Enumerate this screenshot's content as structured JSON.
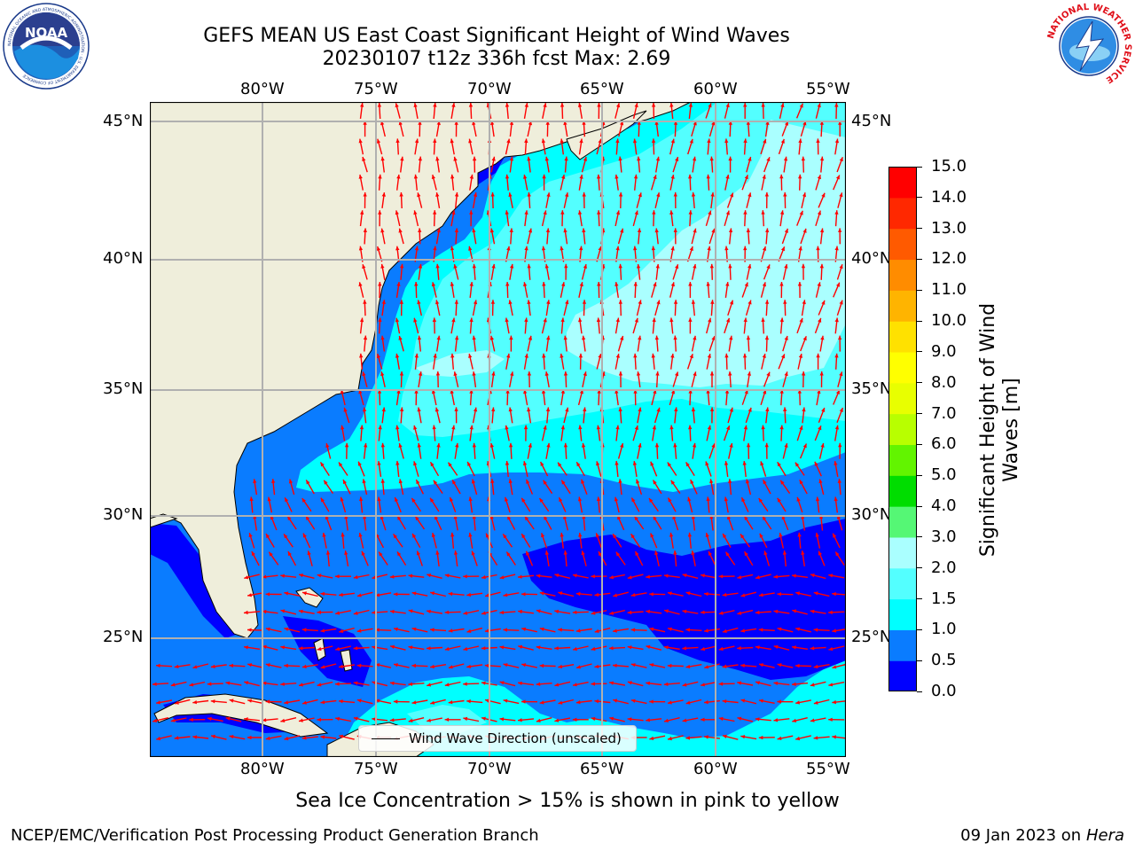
{
  "title": {
    "line1": "GEFS MEAN US East Coast Significant Height of Wind Waves",
    "line2": "20230107 t12z 336h fcst   Max: 2.69"
  },
  "logos": {
    "left": {
      "name": "noaa-logo",
      "text": "NOAA",
      "ring_text": "NATIONAL OCEANIC AND ATMOSPHERIC ADMINISTRATION · U.S. DEPARTMENT OF COMMERCE"
    },
    "right": {
      "name": "nws-logo",
      "ring_text": "NATIONAL WEATHER SERVICE"
    }
  },
  "map": {
    "lon_labels": [
      "80°W",
      "75°W",
      "70°W",
      "65°W",
      "60°W",
      "55°W"
    ],
    "lat_labels": [
      "45°N",
      "40°N",
      "35°N",
      "30°N",
      "25°N"
    ],
    "land_color": "#efeedb",
    "arrow_color": "#ff0000",
    "grid_color": "#b0b0b0"
  },
  "legend": {
    "label": "Wind Wave Direction (unscaled)"
  },
  "colorbar": {
    "label_line1": "Significant Height of Wind",
    "label_line2": "Waves [m]",
    "ticks": [
      "0.0",
      "0.5",
      "1.0",
      "1.5",
      "2.0",
      "3.0",
      "4.0",
      "5.0",
      "6.0",
      "7.0",
      "8.0",
      "9.0",
      "10.0",
      "11.0",
      "12.0",
      "13.0",
      "14.0",
      "15.0"
    ],
    "colors": [
      "#0000ff",
      "#0a7cff",
      "#00ffff",
      "#53ffff",
      "#aaffff",
      "#55f775",
      "#00dd00",
      "#62f400",
      "#b8ff00",
      "#e8ff00",
      "#ffff00",
      "#ffe100",
      "#ffb400",
      "#ff8c00",
      "#ff5a00",
      "#ff2800",
      "#ff0000"
    ]
  },
  "footer": {
    "sea_ice_note": "Sea Ice Concentration > 15% is shown in pink to yellow",
    "left": "NCEP/EMC/Verification Post Processing Product Generation Branch",
    "date": "09 Jan 2023 on ",
    "host": "Hera"
  }
}
